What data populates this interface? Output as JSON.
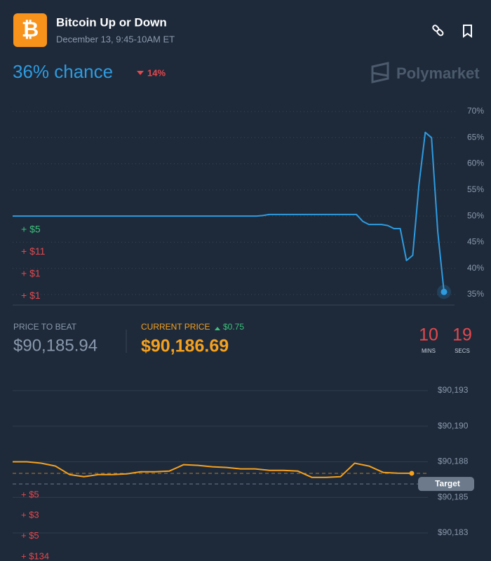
{
  "header": {
    "icon": "₿",
    "title": "Bitcoin Up or Down",
    "subtitle": "December 13, 9:45-10AM ET"
  },
  "odds": {
    "chance": "36% chance",
    "change": "14%",
    "brand": "Polymarket"
  },
  "stats": {
    "price_to_beat_label": "PRICE TO BEAT",
    "price_to_beat": "$90,185.94",
    "current_price_label": "CURRENT PRICE",
    "current_change": "$0.75",
    "current_price": "$90,186.69"
  },
  "countdown": {
    "minutes": "10",
    "minutes_label": "MINS",
    "seconds": "19",
    "seconds_label": "SECS"
  },
  "chart_data": [
    {
      "type": "line",
      "color": "#2e9be0",
      "values": [
        50,
        50,
        50,
        50,
        50,
        50,
        50,
        50,
        50,
        50,
        50,
        50,
        50,
        50,
        50,
        50,
        50,
        50,
        50,
        50,
        50,
        50,
        50,
        50,
        50,
        50,
        50,
        50,
        50,
        50,
        50,
        50,
        50,
        50,
        50,
        50,
        50,
        50,
        50,
        50,
        50.1,
        50.3,
        50.3,
        50.3,
        50.3,
        50.3,
        50.3,
        50.3,
        50.3,
        50.3,
        50.3,
        50.3,
        50.3,
        50.3,
        50.3,
        50.3,
        49,
        48.4,
        48.4,
        48.4,
        48.2,
        47.6,
        47.6,
        41.5,
        42.5,
        56,
        66,
        65,
        47,
        35.5
      ],
      "ylim": [
        35,
        70
      ],
      "yticks": [
        {
          "value": 70,
          "label": "70%"
        },
        {
          "value": 65,
          "label": "65%"
        },
        {
          "value": 60,
          "label": "60%"
        },
        {
          "value": 55,
          "label": "55%"
        },
        {
          "value": 50,
          "label": "50%"
        },
        {
          "value": 45,
          "label": "45%"
        },
        {
          "value": 40,
          "label": "40%"
        },
        {
          "value": 35,
          "label": "35%"
        }
      ],
      "grid": true,
      "trades": [
        {
          "text": "+ $5",
          "color": "#3cc07a"
        },
        {
          "text": "+ $11",
          "color": "#e5484d"
        },
        {
          "text": "+ $1",
          "color": "#e5484d"
        },
        {
          "text": "+ $1",
          "color": "#e5484d"
        }
      ]
    },
    {
      "type": "line",
      "color": "#f5a11e",
      "values": [
        90187.5,
        90187.5,
        90187.4,
        90187.2,
        90186.6,
        90186.45,
        90186.6,
        90186.6,
        90186.65,
        90186.8,
        90186.8,
        90186.85,
        90187.3,
        90187.25,
        90187.15,
        90187.1,
        90187.0,
        90187.0,
        90186.9,
        90186.9,
        90186.85,
        90186.4,
        90186.4,
        90186.45,
        90187.4,
        90187.2,
        90186.75,
        90186.7,
        90186.69
      ],
      "ylim": [
        90182.5,
        90192.5
      ],
      "yticks": [
        {
          "value": 90192.5,
          "label": "$90,193"
        },
        {
          "value": 90190,
          "label": "$90,190"
        },
        {
          "value": 90187.5,
          "label": "$90,188"
        },
        {
          "value": 90185,
          "label": "$90,185"
        },
        {
          "value": 90182.5,
          "label": "$90,183"
        }
      ],
      "grid": true,
      "target": {
        "label": "Target",
        "value": 90185.94
      },
      "trades": [
        {
          "text": "+ $5",
          "color": "#e5484d"
        },
        {
          "text": "+ $3",
          "color": "#e5484d"
        },
        {
          "text": "+ $5",
          "color": "#e5484d"
        },
        {
          "text": "+ $134",
          "color": "#e5484d"
        }
      ]
    }
  ]
}
